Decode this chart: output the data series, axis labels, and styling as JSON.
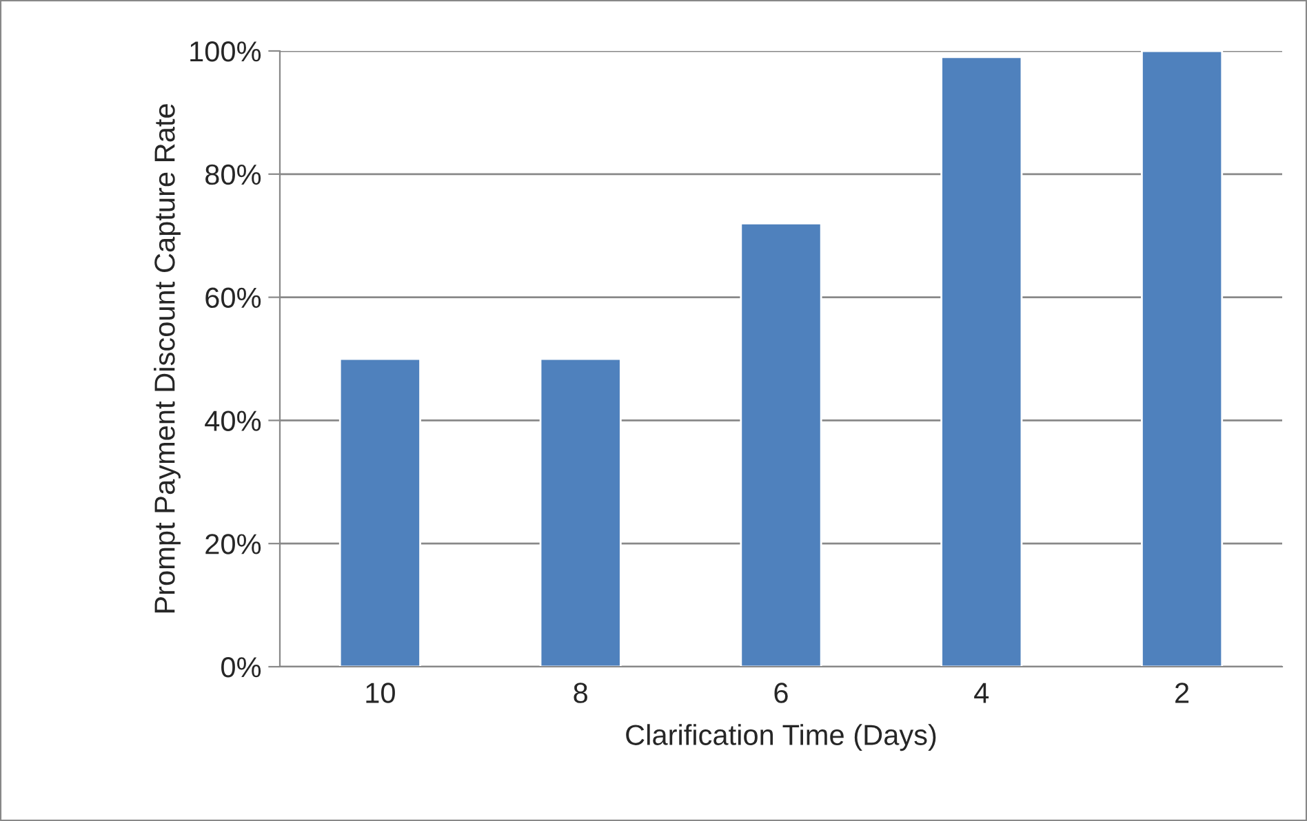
{
  "chart_data": {
    "type": "bar",
    "xlabel": "Clarification Time (Days)",
    "ylabel": "Prompt Payment Discount Capture Rate",
    "categories": [
      "10",
      "8",
      "6",
      "4",
      "2"
    ],
    "values": [
      50,
      50,
      72,
      99,
      100
    ],
    "color": "#4f81bd",
    "ylim": [
      0,
      100
    ],
    "yticks": [
      {
        "value": 0,
        "label": "0%"
      },
      {
        "value": 20,
        "label": "20%"
      },
      {
        "value": 40,
        "label": "40%"
      },
      {
        "value": 60,
        "label": "60%"
      },
      {
        "value": 80,
        "label": "80%"
      },
      {
        "value": 100,
        "label": "100%"
      }
    ],
    "grid": "y"
  }
}
